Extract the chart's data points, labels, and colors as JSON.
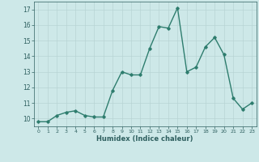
{
  "x": [
    0,
    1,
    2,
    3,
    4,
    5,
    6,
    7,
    8,
    9,
    10,
    11,
    12,
    13,
    14,
    15,
    16,
    17,
    18,
    19,
    20,
    21,
    22,
    23
  ],
  "y": [
    9.8,
    9.8,
    10.2,
    10.4,
    10.5,
    10.2,
    10.1,
    10.1,
    11.8,
    13.0,
    12.8,
    12.8,
    14.5,
    15.9,
    15.8,
    17.1,
    13.0,
    13.3,
    14.6,
    15.2,
    14.1,
    11.3,
    10.6,
    11.0
  ],
  "xlabel": "Humidex (Indice chaleur)",
  "ylabel": "",
  "xlim": [
    -0.5,
    23.5
  ],
  "ylim": [
    9.5,
    17.5
  ],
  "yticks": [
    10,
    11,
    12,
    13,
    14,
    15,
    16,
    17
  ],
  "xticks": [
    0,
    1,
    2,
    3,
    4,
    5,
    6,
    7,
    8,
    9,
    10,
    11,
    12,
    13,
    14,
    15,
    16,
    17,
    18,
    19,
    20,
    21,
    22,
    23
  ],
  "line_color": "#2e7d6e",
  "marker": "D",
  "marker_size": 1.8,
  "bg_color": "#cde8e8",
  "grid_color": "#b8d4d4",
  "tick_label_color": "#2e5f5f",
  "xlabel_color": "#2e5f5f",
  "line_width": 1.0
}
